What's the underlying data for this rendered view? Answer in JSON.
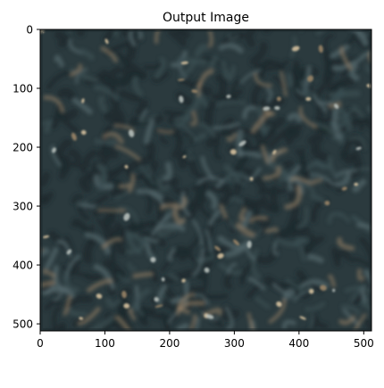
{
  "chart_data": {
    "type": "heatmap",
    "title": "Output Image",
    "xlabel": "",
    "ylabel": "",
    "xlim": [
      0,
      512
    ],
    "ylim": [
      512,
      0
    ],
    "x_ticks": [
      0,
      100,
      200,
      300,
      400,
      500
    ],
    "y_ticks": [
      0,
      100,
      200,
      300,
      400,
      500
    ],
    "image": {
      "content": "swirling dark teal/slate texture with scattered tan and beige highlights",
      "colors": {
        "base": "#2b3a3e",
        "dark": "#1e2a2e",
        "mid": "#3b4e52",
        "light_slate": "#55686c",
        "tan": "#9a8467",
        "beige": "#d6c2a0",
        "pale": "#b8c0bb"
      }
    },
    "grid": false
  }
}
